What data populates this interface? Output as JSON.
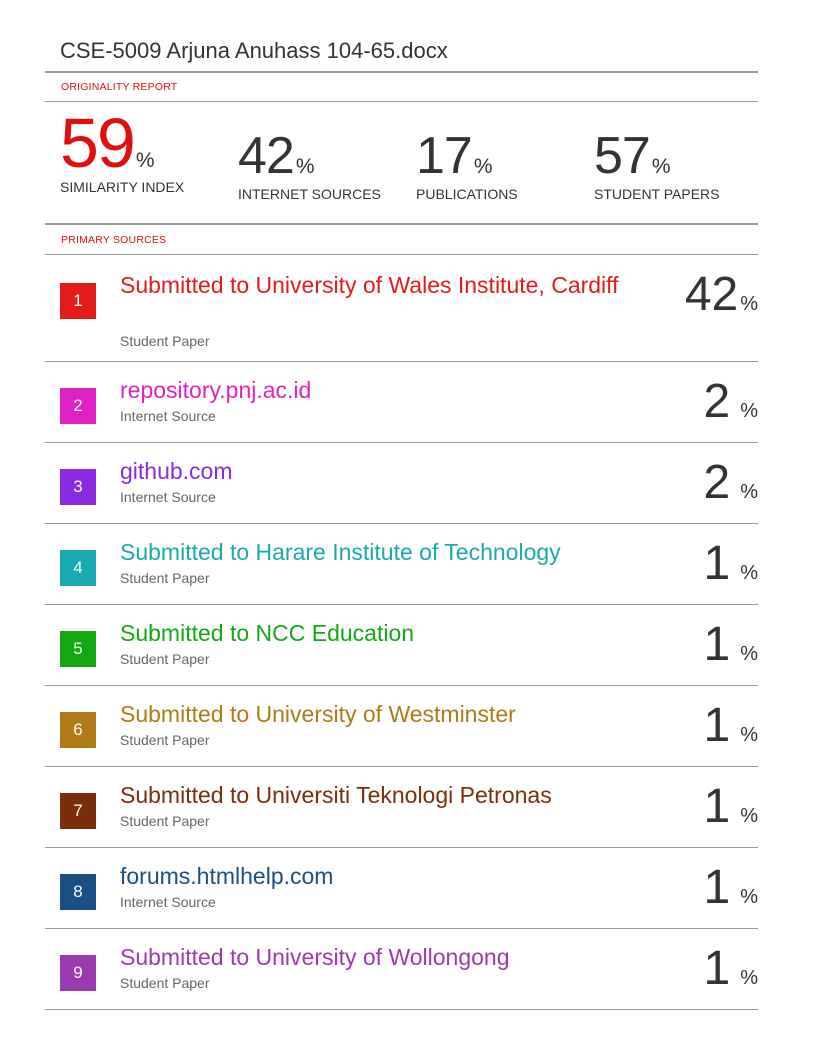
{
  "document": {
    "title": "CSE-5009 Arjuna Anuhass 104-65.docx"
  },
  "originality": {
    "section_label": "ORIGINALITY REPORT",
    "percent_sign": "%",
    "similarity": {
      "value": "59",
      "label": "SIMILARITY INDEX"
    },
    "internet": {
      "value": "42",
      "label": "INTERNET SOURCES"
    },
    "publications": {
      "value": "17",
      "label": "PUBLICATIONS"
    },
    "student": {
      "value": "57",
      "label": "STUDENT PAPERS"
    }
  },
  "primary": {
    "section_label": "PRIMARY SOURCES",
    "sources": [
      {
        "rank": "1",
        "name": "Submitted to University of Wales Institute, Cardiff",
        "type": "Student Paper",
        "percent": "42",
        "color": "#e31b1b"
      },
      {
        "rank": "2",
        "name": "repository.pnj.ac.id",
        "type": "Internet Source",
        "percent": "2",
        "color": "#e022c4"
      },
      {
        "rank": "3",
        "name": "github.com",
        "type": "Internet Source",
        "percent": "2",
        "color": "#8a2be2"
      },
      {
        "rank": "4",
        "name": "Submitted to Harare Institute of Technology",
        "type": "Student Paper",
        "percent": "1",
        "color": "#1aa9b0"
      },
      {
        "rank": "5",
        "name": "Submitted to NCC Education",
        "type": "Student Paper",
        "percent": "1",
        "color": "#13a813"
      },
      {
        "rank": "6",
        "name": "Submitted to University of Westminster",
        "type": "Student Paper",
        "percent": "1",
        "color": "#b07a16"
      },
      {
        "rank": "7",
        "name": "Submitted to Universiti Teknologi Petronas",
        "type": "Student Paper",
        "percent": "1",
        "color": "#7a2e0c"
      },
      {
        "rank": "8",
        "name": "forums.htmlhelp.com",
        "type": "Internet Source",
        "percent": "1",
        "color": "#1a4f86"
      },
      {
        "rank": "9",
        "name": "Submitted to University of Wollongong",
        "type": "Student Paper",
        "percent": "1",
        "color": "#9c3ab0"
      }
    ]
  }
}
